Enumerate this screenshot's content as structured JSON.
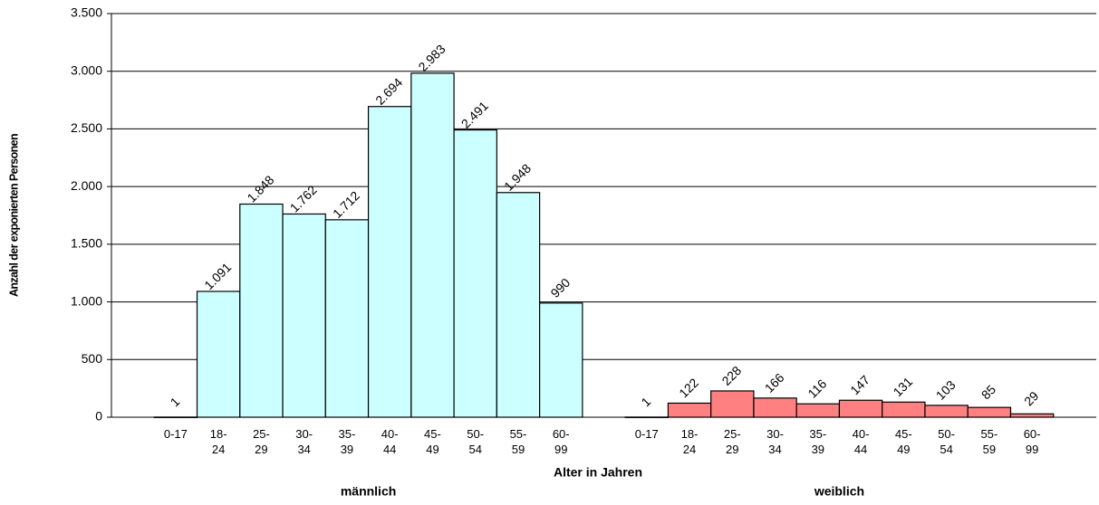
{
  "chart_data": {
    "type": "bar",
    "y_label": "Anzahl der exponierten Personen",
    "x_label": "Alter in Jahren",
    "categories": [
      null,
      "0-17",
      "18-\n24",
      "25-\n29",
      "30-\n34",
      "35-\n39",
      "40-\n44",
      "45-\n49",
      "50-\n54",
      "55-\n59",
      "60-\n99",
      null,
      "0-17",
      "18-\n24",
      "25-\n29",
      "30-\n34",
      "35-\n39",
      "40-\n44",
      "45-\n49",
      "50-\n54",
      "55-\n59",
      "60-\n99",
      null
    ],
    "series": [
      {
        "name": "männlich",
        "color": "#ccffff",
        "values": [
          null,
          1,
          1091,
          1848,
          1762,
          1712,
          2694,
          2983,
          2491,
          1948,
          990,
          null,
          null,
          null,
          null,
          null,
          null,
          null,
          null,
          null,
          null,
          null,
          null
        ],
        "value_labels": [
          null,
          "1",
          "1.091",
          "1.848",
          "1.762",
          "1.712",
          "2.694",
          "2.983",
          "2.491",
          "1.948",
          "990",
          null,
          null,
          null,
          null,
          null,
          null,
          null,
          null,
          null,
          null,
          null,
          null
        ]
      },
      {
        "name": "weiblich",
        "color": "#ff8080",
        "values": [
          null,
          null,
          null,
          null,
          null,
          null,
          null,
          null,
          null,
          null,
          null,
          null,
          1,
          122,
          228,
          166,
          116,
          147,
          131,
          103,
          85,
          29,
          null
        ],
        "value_labels": [
          null,
          null,
          null,
          null,
          null,
          null,
          null,
          null,
          null,
          null,
          null,
          null,
          "1",
          "122",
          "228",
          "166",
          "116",
          "147",
          "131",
          "103",
          "85",
          "29",
          null
        ]
      }
    ],
    "ylim": [
      0,
      3500
    ],
    "yticks": [
      0,
      500,
      {
        "value": 1000,
        "label": "1.000"
      },
      {
        "value": 1500,
        "label": "1.500"
      },
      {
        "value": 2000,
        "label": "2.000"
      },
      {
        "value": 2500,
        "label": "2.500"
      },
      {
        "value": 3000,
        "label": "3.000"
      },
      {
        "value": 3500,
        "label": "3.500"
      }
    ],
    "grid": true
  }
}
